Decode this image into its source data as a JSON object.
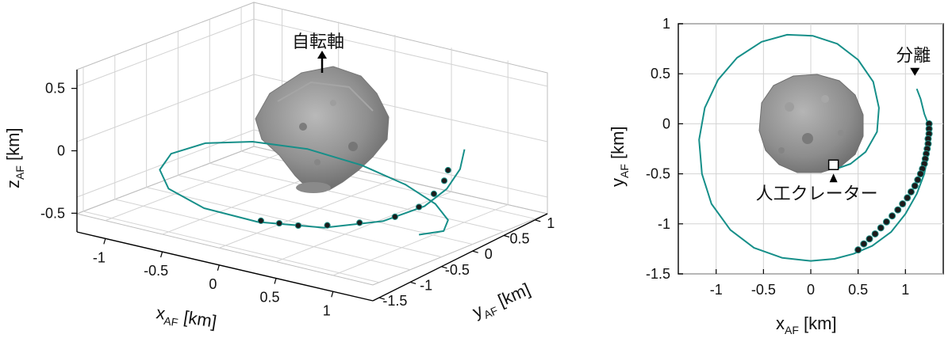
{
  "colors": {
    "trajectory": "#168f89",
    "sample_marker": "#1b1b1b",
    "sample_marker_edge": "#1f8f86",
    "asteroid": "#8f8f8f",
    "grid": "#d3d3d3",
    "axes": "#000000"
  },
  "chart_data": [
    {
      "panel": "left",
      "type": "line3d",
      "xlabel": {
        "base": "x",
        "sub": "AF",
        "unit": " [km]"
      },
      "ylabel": {
        "base": "y",
        "sub": "AF",
        "unit": " [km]"
      },
      "zlabel": {
        "base": "z",
        "sub": "AF",
        "unit": " [km]"
      },
      "xticks": [
        "-1",
        "-0.5",
        "0",
        "0.5",
        "1"
      ],
      "yticks": [
        "-1.5",
        "-1",
        "-0.5",
        "0",
        "0.5",
        "1"
      ],
      "zticks": [
        "0.5",
        "0",
        "-0.5"
      ],
      "xlim": [
        -1.25,
        1.35
      ],
      "ylim": [
        -1.6,
        1.2
      ],
      "zlim": [
        -0.65,
        0.65
      ],
      "grid": true,
      "annotations": [
        {
          "text": "自転軸",
          "meaning": "rotation axis arrow"
        }
      ],
      "series": [
        {
          "kind": "trajectory",
          "x": [
            1.1,
            1.2,
            1.25,
            1.22,
            1.05,
            0.7,
            0.2,
            -0.3,
            -0.75,
            -1.05,
            -1.2,
            -1.15,
            -0.9,
            -0.5,
            0.0,
            0.5,
            0.9,
            1.15,
            1.25,
            1.2
          ],
          "y": [
            0.3,
            0.05,
            -0.25,
            -0.55,
            -0.9,
            -1.2,
            -1.35,
            -1.3,
            -1.05,
            -0.65,
            -0.2,
            0.25,
            0.55,
            0.7,
            0.65,
            0.45,
            0.2,
            -0.05,
            -0.3,
            -0.6
          ],
          "z": [
            0.1,
            0.0,
            -0.1,
            -0.2,
            -0.3,
            -0.38,
            -0.42,
            -0.43,
            -0.42,
            -0.41,
            -0.4,
            -0.39,
            -0.38,
            -0.38,
            -0.39,
            -0.4,
            -0.42,
            -0.45,
            -0.47,
            -0.45
          ]
        },
        {
          "kind": "sample-points",
          "x": [
            1.15,
            1.2,
            1.22,
            1.2,
            1.1,
            0.9,
            0.7,
            0.5,
            0.35,
            0.2
          ],
          "y": [
            -0.05,
            -0.2,
            -0.4,
            -0.6,
            -0.8,
            -1.0,
            -1.15,
            -1.25,
            -1.28,
            -1.3
          ],
          "z": [
            0.0,
            -0.05,
            -0.12,
            -0.2,
            -0.27,
            -0.33,
            -0.37,
            -0.4,
            -0.41,
            -0.42
          ]
        }
      ]
    },
    {
      "panel": "right",
      "type": "line",
      "xlabel": {
        "base": "x",
        "sub": "AF",
        "unit": " [km]"
      },
      "ylabel": {
        "base": "y",
        "sub": "AF",
        "unit": " [km]"
      },
      "xticks": [
        "-1",
        "-0.5",
        "0",
        "0.5",
        "1"
      ],
      "yticks": [
        "1",
        "0.5",
        "0",
        "-0.5",
        "-1",
        "-1.5"
      ],
      "xlim": [
        -1.4,
        1.4
      ],
      "ylim": [
        -1.5,
        1.0
      ],
      "grid": true,
      "annotations": [
        {
          "text": "分離",
          "meaning": "separation point",
          "x": 1.1,
          "y": 0.48
        },
        {
          "text": "人工クレーター",
          "meaning": "artificial crater",
          "x": 0.24,
          "y": -0.41
        }
      ],
      "series": [
        {
          "kind": "trajectory",
          "x": [
            1.12,
            1.16,
            1.2,
            1.24,
            1.25,
            1.24,
            1.2,
            1.12,
            1.0,
            0.85,
            0.65,
            0.45,
            0.25,
            0.0,
            -0.3,
            -0.6,
            -0.85,
            -1.05,
            -1.15,
            -1.18,
            -1.12,
            -0.98,
            -0.78,
            -0.52,
            -0.25,
            0.02,
            0.28,
            0.5,
            0.66,
            0.72,
            0.7,
            0.58,
            0.42,
            0.3,
            0.24
          ],
          "y": [
            0.35,
            0.25,
            0.1,
            0.0,
            -0.15,
            -0.3,
            -0.5,
            -0.7,
            -0.9,
            -1.08,
            -1.22,
            -1.3,
            -1.35,
            -1.37,
            -1.34,
            -1.24,
            -1.06,
            -0.8,
            -0.5,
            -0.16,
            0.16,
            0.44,
            0.66,
            0.82,
            0.89,
            0.88,
            0.8,
            0.64,
            0.42,
            0.16,
            -0.08,
            -0.28,
            -0.4,
            -0.44,
            -0.43
          ]
        },
        {
          "kind": "sample-points",
          "x": [
            1.25,
            1.25,
            1.25,
            1.24,
            1.24,
            1.23,
            1.22,
            1.21,
            1.2,
            1.18,
            1.16,
            1.13,
            1.1,
            1.06,
            1.02,
            0.97,
            0.92,
            0.86,
            0.8,
            0.74,
            0.68,
            0.62,
            0.56,
            0.5
          ],
          "y": [
            0.0,
            -0.05,
            -0.1,
            -0.15,
            -0.2,
            -0.25,
            -0.3,
            -0.35,
            -0.4,
            -0.45,
            -0.5,
            -0.56,
            -0.62,
            -0.68,
            -0.74,
            -0.8,
            -0.86,
            -0.92,
            -0.98,
            -1.04,
            -1.1,
            -1.15,
            -1.2,
            -1.26
          ]
        }
      ]
    }
  ]
}
